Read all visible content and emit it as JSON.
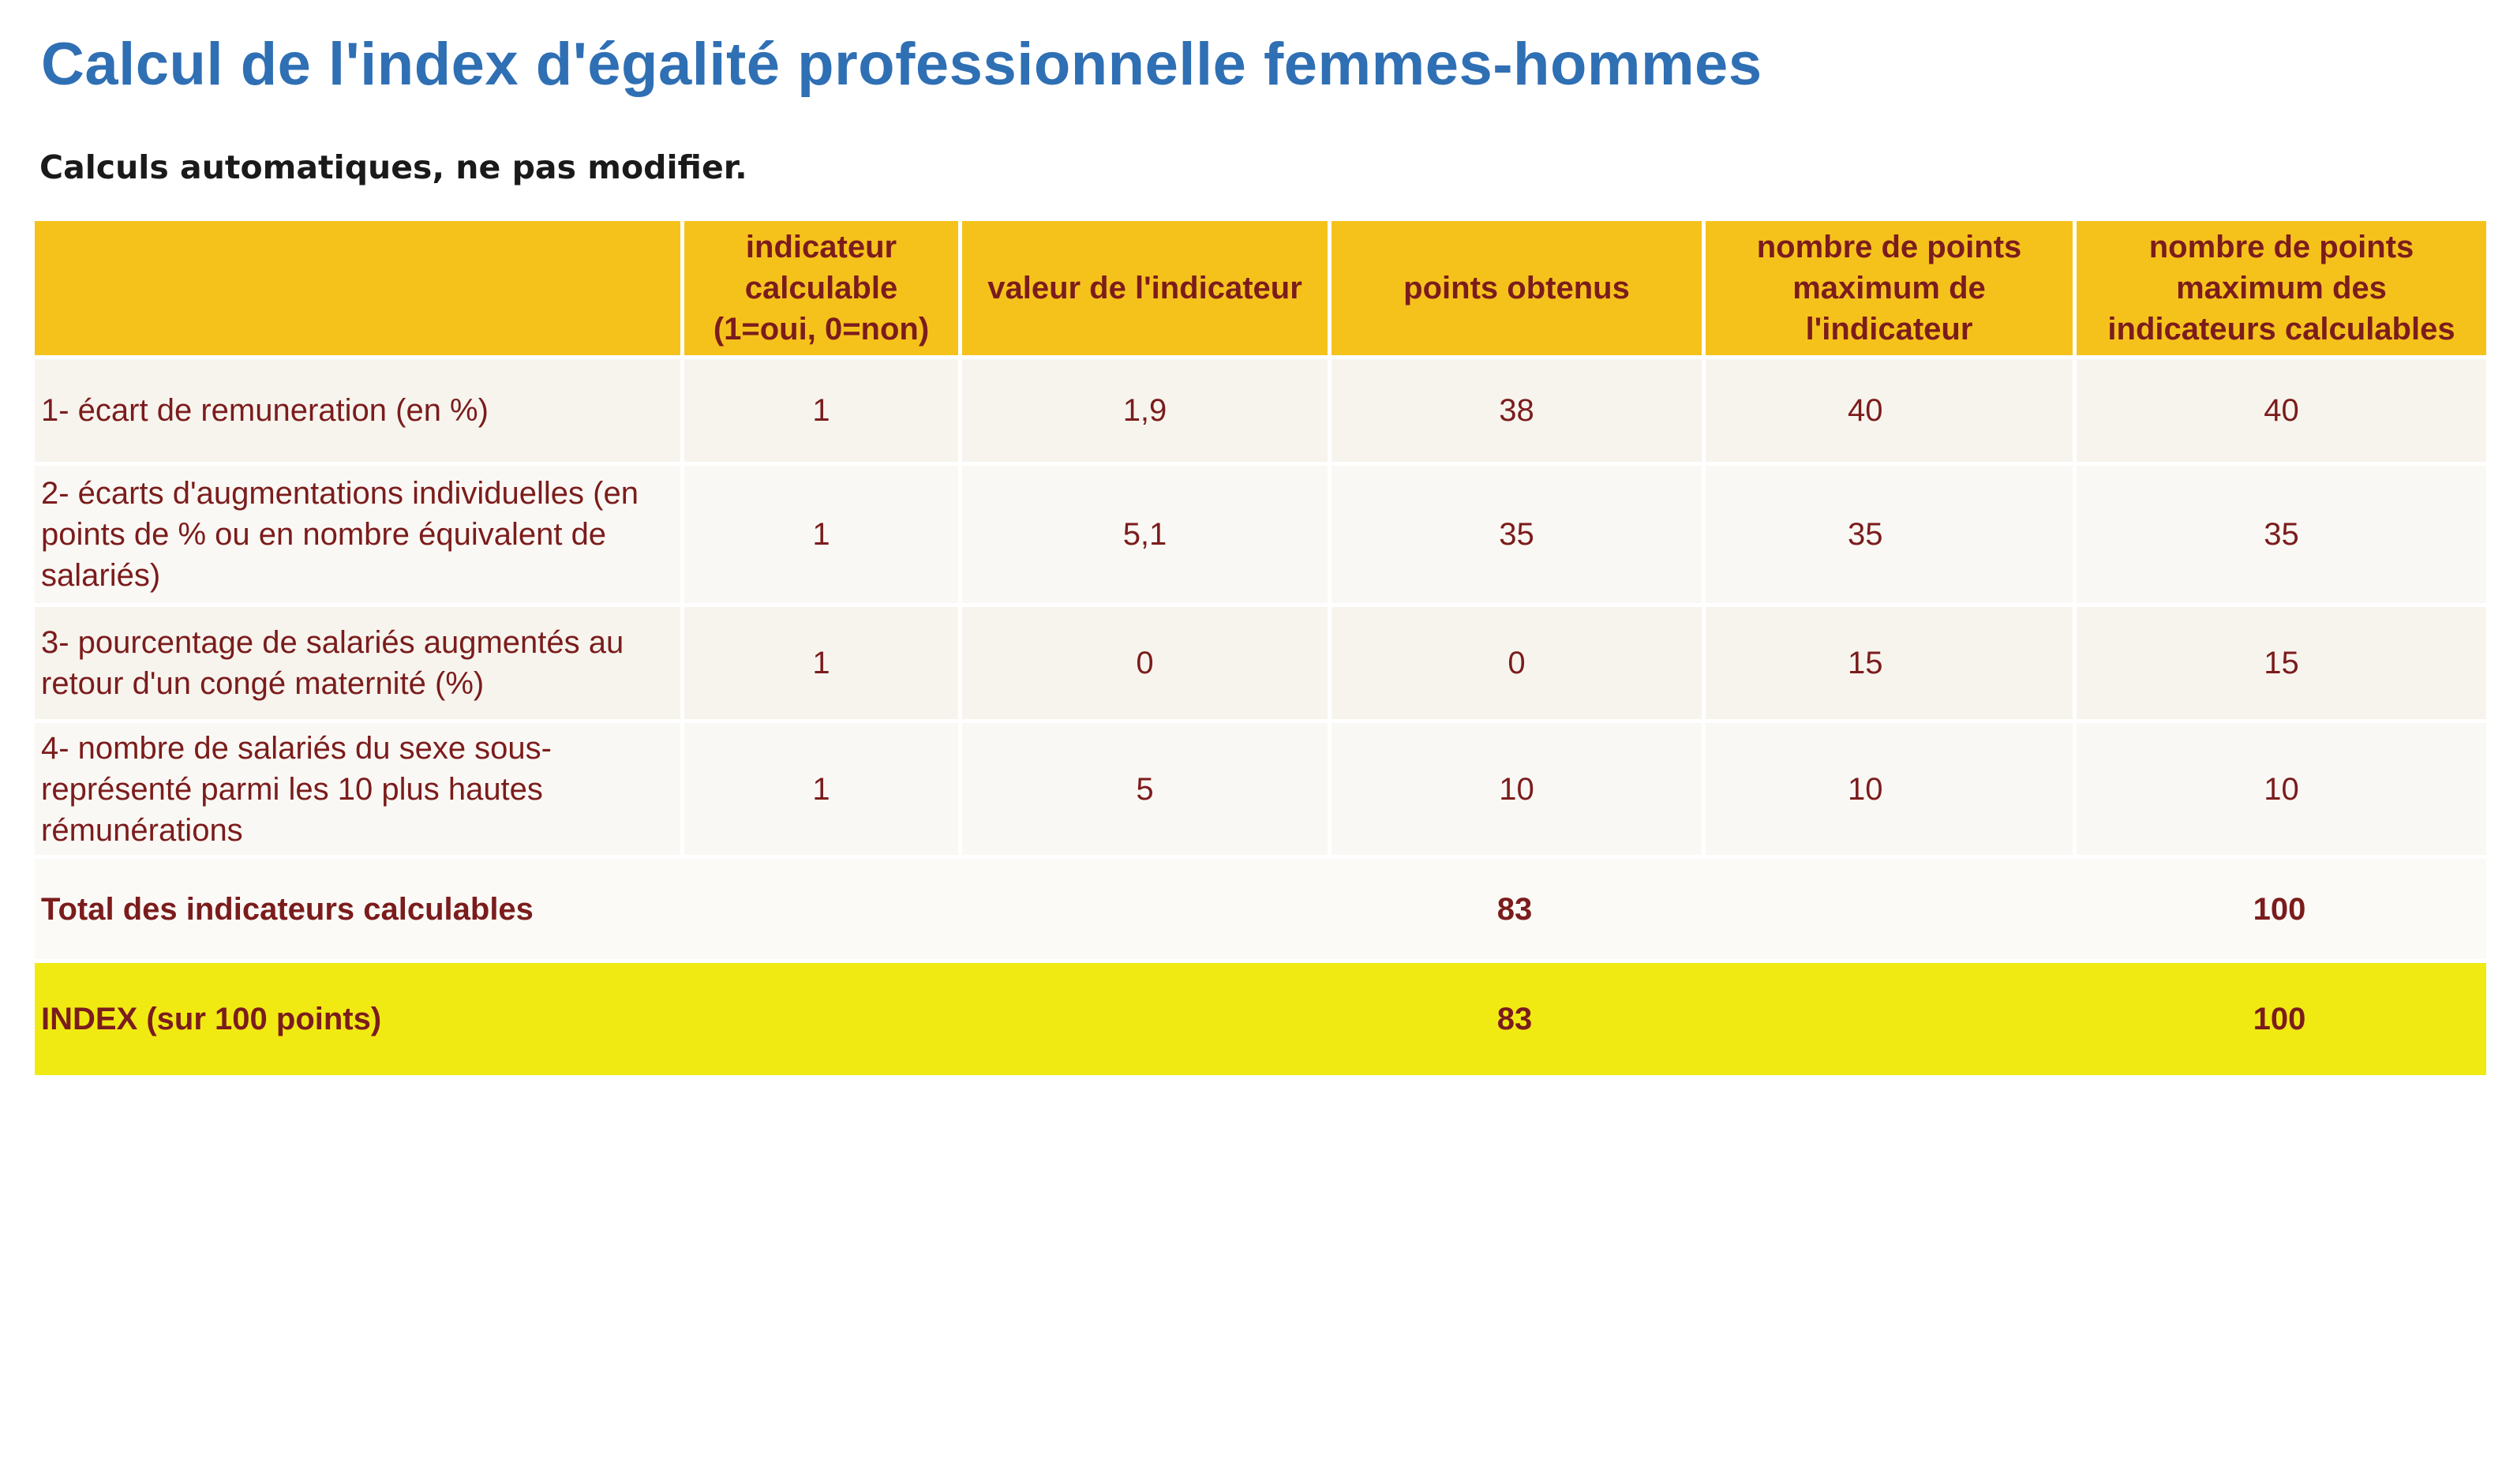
{
  "document": {
    "title": "Calcul de l'index d'égalité professionnelle femmes-hommes",
    "subtitle": "Calculs automatiques, ne pas modifier."
  },
  "table": {
    "headers": [
      "",
      "indicateur calculable (1=oui, 0=non)",
      "valeur de l'indicateur",
      "points obtenus",
      "nombre de points maximum de l'indicateur",
      "nombre de points maximum des indicateurs calculables"
    ],
    "rows": [
      {
        "label": "1- écart de remuneration (en %)",
        "calculable": "1",
        "valeur": "1,9",
        "points": "38",
        "max_indicateur": "40",
        "max_calculables": "40"
      },
      {
        "label": "2- écarts d'augmentations individuelles (en points de % ou en nombre équivalent de salariés)",
        "calculable": "1",
        "valeur": "5,1",
        "points": "35",
        "max_indicateur": "35",
        "max_calculables": "35"
      },
      {
        "label": "3- pourcentage de salariés augmentés au retour d'un congé maternité (%)",
        "calculable": "1",
        "valeur": "0",
        "points": "0",
        "max_indicateur": "15",
        "max_calculables": "15"
      },
      {
        "label": "4- nombre de salariés du sexe sous-représenté parmi les 10 plus hautes rémunérations",
        "calculable": "1",
        "valeur": "5",
        "points": "10",
        "max_indicateur": "10",
        "max_calculables": "10"
      }
    ],
    "total": {
      "label": "Total des indicateurs calculables",
      "points": "83",
      "max_calculables": "100"
    },
    "index": {
      "label": "INDEX (sur 100 points)",
      "points": "83",
      "max_calculables": "100"
    }
  },
  "colors": {
    "title": "#2f6fb4",
    "header_bg": "#f5c21c",
    "index_row_bg": "#f0ea12",
    "text": "#7b1c1c"
  }
}
